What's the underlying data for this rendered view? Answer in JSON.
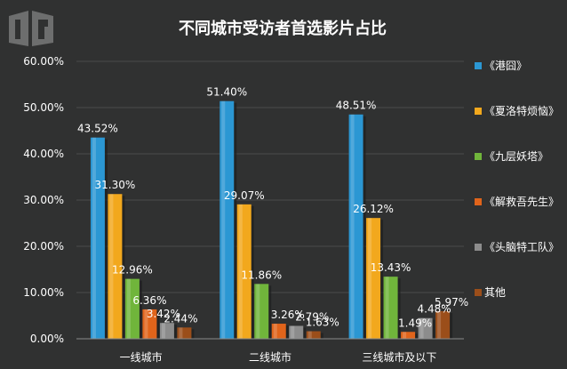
{
  "logo": {
    "label": "IR"
  },
  "chart_data": {
    "type": "bar",
    "title": "不同城市受访者首选影片占比",
    "categories": [
      "一线城市",
      "二线城市",
      "三线城市及以下"
    ],
    "series": [
      {
        "name": "《港囧》",
        "color": "#2b97d3",
        "values": [
          43.52,
          51.4,
          48.51
        ],
        "labels": [
          "43.52%",
          "51.40%",
          "48.51%"
        ]
      },
      {
        "name": "《夏洛特烦恼》",
        "color": "#f2a81d",
        "values": [
          31.3,
          29.07,
          26.12
        ],
        "labels": [
          "31.30%",
          "29.07%",
          "26.12%"
        ]
      },
      {
        "name": "《九层妖塔》",
        "color": "#70b53b",
        "values": [
          12.96,
          11.86,
          13.43
        ],
        "labels": [
          "12.96%",
          "11.86%",
          "13.43%"
        ]
      },
      {
        "name": "《解救吾先生》",
        "color": "#e0641b",
        "values": [
          6.36,
          3.26,
          1.49
        ],
        "labels": [
          "6.36%",
          "3.26%",
          "1.49%"
        ]
      },
      {
        "name": "《头脑特工队》",
        "color": "#8c8c8c",
        "values": [
          3.42,
          2.79,
          4.48
        ],
        "labels": [
          "3.42%",
          "2.79%",
          "4.48%"
        ]
      },
      {
        "name": "其他",
        "color": "#9b4e1a",
        "values": [
          2.44,
          1.63,
          5.97
        ],
        "labels": [
          "2.44%",
          "1.63%",
          "5.97%"
        ]
      }
    ],
    "yticks": [
      "0.00%",
      "10.00%",
      "20.00%",
      "30.00%",
      "40.00%",
      "50.00%",
      "60.00%"
    ],
    "ylim": [
      0,
      60
    ],
    "grid": true,
    "legend": "right"
  }
}
